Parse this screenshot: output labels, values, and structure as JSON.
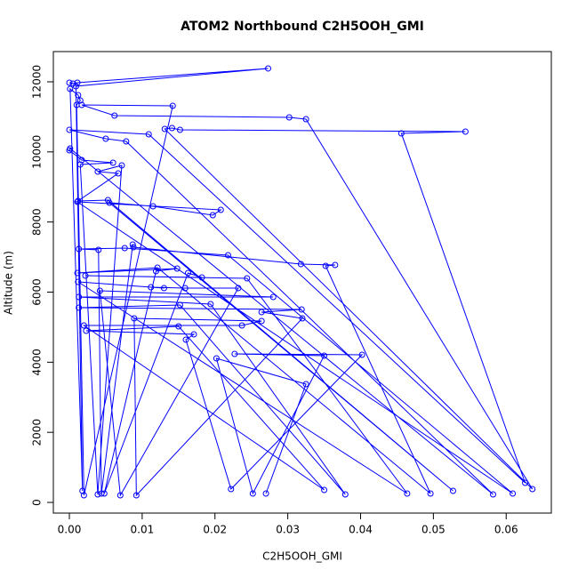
{
  "chart_data": {
    "type": "line",
    "markers": "open-circle",
    "title": "ATOM2 Northbound C2H5OOH_GMI",
    "x_label": "C2H5OOH_GMI",
    "y_label": "Altitude (m)",
    "xlim": [
      -0.0022,
      0.0662
    ],
    "ylim": [
      -304,
      12862
    ],
    "xticks": [
      {
        "value": 0,
        "label": "0.00"
      },
      {
        "value": 0.01,
        "label": "0.01"
      },
      {
        "value": 0.02,
        "label": "0.02"
      },
      {
        "value": 0.03,
        "label": "0.03"
      },
      {
        "value": 0.04,
        "label": "0.04"
      },
      {
        "value": 0.05,
        "label": "0.05"
      },
      {
        "value": 0.06,
        "label": "0.06"
      }
    ],
    "yticks": [
      0,
      2000,
      4000,
      6000,
      8000,
      10000,
      12000
    ],
    "grid": false,
    "series": [
      {
        "color": "#0000ff",
        "x": [
          0.0,
          0.0005,
          0.0011,
          0.0273,
          0.0009,
          0.0018,
          0.0001,
          0.0012,
          0.0015,
          0.001,
          0.002,
          0.0142,
          0.0017,
          0.0062,
          0.0302,
          0.0325,
          0.0636,
          0.0131,
          0.0141,
          0.0152,
          0.0544,
          0.0456,
          0.0626,
          0.0109,
          0.0,
          0.005,
          0.0078,
          0.0582,
          0.0001,
          0.0,
          0.0017,
          0.006,
          0.0015,
          0.0039,
          0.0072,
          0.0039,
          0.0067,
          0.0012,
          0.0053,
          0.0527,
          0.0055,
          0.0115,
          0.0197,
          0.0208,
          0.0011,
          0.0609,
          0.0218,
          0.0076,
          0.0013,
          0.004,
          0.0044,
          0.0087,
          0.0088,
          0.0318,
          0.0365,
          0.0352,
          0.0496,
          0.0121,
          0.0011,
          0.0148,
          0.0119,
          0.0048,
          0.0163,
          0.0182,
          0.0022,
          0.0244,
          0.0464,
          0.0012,
          0.013,
          0.0112,
          0.0159,
          0.0232,
          0.007,
          0.0042,
          0.028,
          0.0013,
          0.0194,
          0.0379,
          0.0152,
          0.0013,
          0.0319,
          0.0264,
          0.032,
          0.0092,
          0.0089,
          0.0264,
          0.0237,
          0.002,
          0.035,
          0.015,
          0.0023,
          0.0171,
          0.016,
          0.0222,
          0.0402,
          0.0227,
          0.035,
          0.0252,
          0.0202,
          0.0325,
          0.027
        ],
        "values": [
          11975,
          11949,
          11975,
          12381,
          11873,
          330,
          11797,
          11619,
          11467,
          11340,
          203,
          11315,
          11340,
          11036,
          10985,
          10934,
          381,
          10655,
          10681,
          10630,
          10579,
          10529,
          558,
          10503,
          10630,
          10376,
          10300,
          228,
          10097,
          10047,
          9767,
          9691,
          9641,
          228,
          9615,
          9438,
          9387,
          8600,
          8624,
          330,
          8550,
          8448,
          8195,
          8347,
          8575,
          254,
          7053,
          7256,
          7230,
          7205,
          254,
          7357,
          7281,
          6799,
          6774,
          6748,
          254,
          6698,
          6545,
          6672,
          6596,
          254,
          6545,
          6419,
          6469,
          6393,
          254,
          6292,
          6114,
          6140,
          6114,
          6114,
          203,
          6038,
          5860,
          5860,
          5658,
          228,
          5632,
          5556,
          5505,
          5429,
          5252,
          203,
          5252,
          5176,
          5049,
          5049,
          355,
          5023,
          4896,
          4795,
          4643,
          381,
          4212,
          4237,
          4186,
          254,
          4110,
          3374,
          254
        ]
      }
    ]
  }
}
